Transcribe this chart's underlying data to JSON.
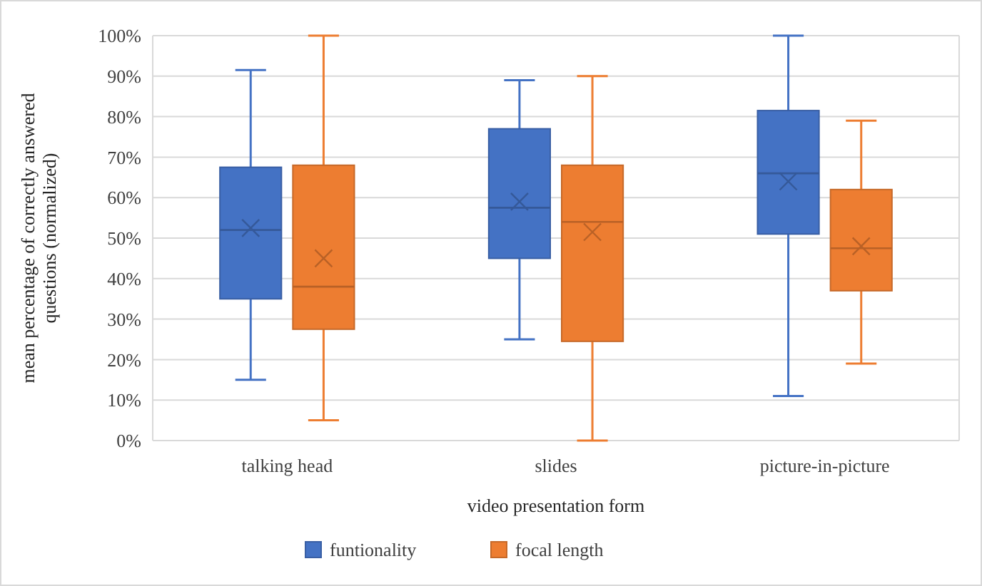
{
  "chart_data": {
    "type": "box",
    "xlabel": "video presentation form",
    "ylabel": "mean percentage of correctly answered questions (normalized)",
    "categories": [
      "talking head",
      "slides",
      "picture-in-picture"
    ],
    "ylim": [
      0,
      100
    ],
    "yticks": [
      {
        "value": 0,
        "label": "0%"
      },
      {
        "value": 10,
        "label": "10%"
      },
      {
        "value": 20,
        "label": "20%"
      },
      {
        "value": 30,
        "label": "30%"
      },
      {
        "value": 40,
        "label": "40%"
      },
      {
        "value": 50,
        "label": "50%"
      },
      {
        "value": 60,
        "label": "60%"
      },
      {
        "value": 70,
        "label": "70%"
      },
      {
        "value": 80,
        "label": "80%"
      },
      {
        "value": 90,
        "label": "90%"
      },
      {
        "value": 100,
        "label": "100%"
      }
    ],
    "grid": "y",
    "legend": "bottom",
    "series": [
      {
        "name": "funtionality",
        "color": "#4472c4",
        "boxes": [
          {
            "low": 15,
            "q1": 35,
            "median": 52,
            "q3": 67.5,
            "high": 91.5,
            "mean": 52.5
          },
          {
            "low": 25,
            "q1": 45,
            "median": 57.5,
            "q3": 77,
            "high": 89,
            "mean": 59
          },
          {
            "low": 11,
            "q1": 51,
            "median": 66,
            "q3": 81.5,
            "high": 100,
            "mean": 64
          }
        ]
      },
      {
        "name": "focal length",
        "color": "#ed7d31",
        "boxes": [
          {
            "low": 5,
            "q1": 27.5,
            "median": 38,
            "q3": 68,
            "high": 100,
            "mean": 45
          },
          {
            "low": 0,
            "q1": 24.5,
            "median": 54,
            "q3": 68,
            "high": 90,
            "mean": 51.5
          },
          {
            "low": 19,
            "q1": 37,
            "median": 47.5,
            "q3": 62,
            "high": 79,
            "mean": 48
          }
        ]
      }
    ]
  }
}
